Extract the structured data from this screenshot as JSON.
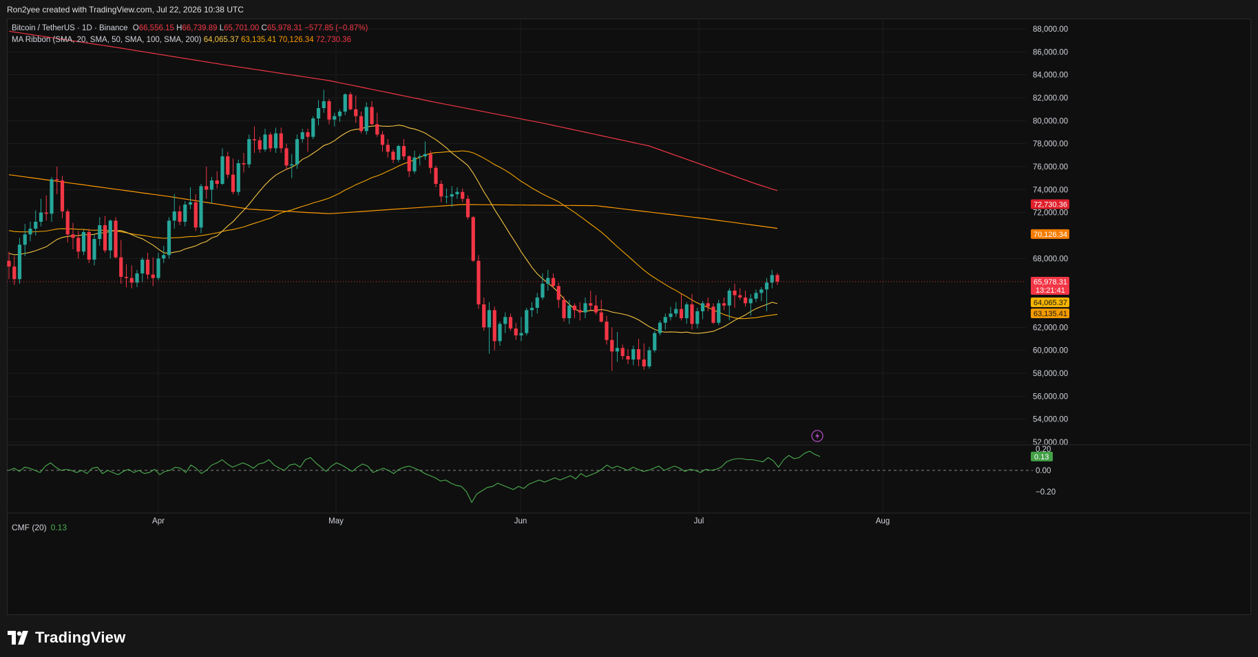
{
  "header": {
    "attribution": "Ron2yee created with TradingView.com, Jul 22, 2026 10:38 UTC"
  },
  "legend": {
    "symbol": "Bitcoin / TetherUS · 1D · Binance",
    "o_label": "O",
    "o_value": "66,556.15",
    "h_label": "H",
    "h_value": "66,739.89",
    "l_label": "L",
    "l_value": "65,701.00",
    "c_label": "C",
    "c_value": "65,978.31",
    "change": "−577.85 (−0.87%)",
    "ma_label": "MA Ribbon (SMA, 20, SMA, 50, SMA, 100, SMA, 200)",
    "ma_values": [
      "64,065.37",
      "63,135.41",
      "70,126.34",
      "72,730.36"
    ]
  },
  "cmf_legend": {
    "label": "CMF (20)",
    "value": "0.13"
  },
  "price_tags": {
    "ma200": "72,730.36",
    "ma100": "70,126.34",
    "last": "65,978.31",
    "countdown": "13:21:41",
    "ma20": "64,065.37",
    "ma50": "63,135.41",
    "cmf": "0.13"
  },
  "colors": {
    "up": "#26a69a",
    "down": "#f23645",
    "ma20": "#f5c542",
    "ma50": "#f7a600",
    "ma100": "#ff9800",
    "ma200": "#f23645",
    "cmf": "#4caf50",
    "background": "#0f0f0f"
  },
  "logo": {
    "text": "TradingView",
    "icon": "tradingview-logo-icon"
  },
  "chart_data": {
    "type": "candlestick",
    "title": "Bitcoin / TetherUS · 1D · Binance",
    "price_axis": {
      "ticks": [
        "88,000.00",
        "86,000.00",
        "84,000.00",
        "82,000.00",
        "80,000.00",
        "78,000.00",
        "76,000.00",
        "74,000.00",
        "72,000.00",
        "68,000.00",
        "62,000.00",
        "60,000.00",
        "58,000.00",
        "56,000.00",
        "54,000.00",
        "52,000.00"
      ],
      "ylim": [
        51500,
        89000
      ]
    },
    "time_axis": {
      "ticks": [
        "Apr",
        "May",
        "Jun",
        "Jul",
        "Aug"
      ]
    },
    "start_day_index": 0,
    "candles": [
      [
        67800,
        68600,
        66200,
        67300
      ],
      [
        67300,
        68200,
        65700,
        66200
      ],
      [
        66200,
        69800,
        65800,
        69200
      ],
      [
        69200,
        71000,
        68200,
        70100
      ],
      [
        70100,
        71200,
        69500,
        70600
      ],
      [
        70600,
        72200,
        70000,
        71200
      ],
      [
        71200,
        73200,
        70800,
        72000
      ],
      [
        72000,
        73500,
        71300,
        71900
      ],
      [
        71900,
        75100,
        71200,
        74900
      ],
      [
        74900,
        76000,
        73600,
        74800
      ],
      [
        74800,
        75200,
        71500,
        72100
      ],
      [
        72100,
        72300,
        69400,
        70100
      ],
      [
        70100,
        71100,
        68800,
        69800
      ],
      [
        69800,
        70400,
        68000,
        68600
      ],
      [
        68600,
        70500,
        68300,
        70300
      ],
      [
        70300,
        70600,
        67600,
        67900
      ],
      [
        67900,
        70100,
        67400,
        69700
      ],
      [
        69700,
        71600,
        69100,
        70900
      ],
      [
        70900,
        71700,
        68500,
        68700
      ],
      [
        68700,
        71400,
        68000,
        71300
      ],
      [
        71300,
        71600,
        68000,
        68100
      ],
      [
        68100,
        69600,
        65800,
        66400
      ],
      [
        66400,
        67500,
        65500,
        66300
      ],
      [
        66300,
        67400,
        65400,
        65900
      ],
      [
        65900,
        67000,
        65500,
        66700
      ],
      [
        66700,
        68100,
        65900,
        67900
      ],
      [
        67900,
        68500,
        66200,
        66600
      ],
      [
        66600,
        68100,
        65600,
        66300
      ],
      [
        66300,
        68500,
        66100,
        68000
      ],
      [
        68000,
        69100,
        67600,
        68300
      ],
      [
        68300,
        71600,
        68000,
        71300
      ],
      [
        71300,
        73600,
        70600,
        72100
      ],
      [
        72100,
        72600,
        70900,
        71200
      ],
      [
        71200,
        73000,
        70800,
        72700
      ],
      [
        72700,
        74200,
        72300,
        72900
      ],
      [
        72900,
        73600,
        70400,
        70700
      ],
      [
        70700,
        74500,
        70200,
        74300
      ],
      [
        74300,
        76000,
        73200,
        74000
      ],
      [
        74000,
        75100,
        72800,
        74800
      ],
      [
        74800,
        75600,
        74100,
        74500
      ],
      [
        74500,
        77600,
        74400,
        76900
      ],
      [
        76900,
        77300,
        75000,
        75300
      ],
      [
        75300,
        76700,
        73600,
        73800
      ],
      [
        73800,
        76600,
        73500,
        76300
      ],
      [
        76300,
        77200,
        75500,
        76200
      ],
      [
        76200,
        78800,
        75900,
        78400
      ],
      [
        78400,
        79500,
        77200,
        78300
      ],
      [
        78300,
        78600,
        77200,
        77500
      ],
      [
        77500,
        79300,
        77300,
        78800
      ],
      [
        78800,
        79000,
        77300,
        77600
      ],
      [
        77600,
        79400,
        77200,
        78900
      ],
      [
        78900,
        79400,
        77200,
        77600
      ],
      [
        77600,
        78000,
        75700,
        76100
      ],
      [
        76100,
        77100,
        75000,
        76200
      ],
      [
        76200,
        78800,
        75800,
        78400
      ],
      [
        78400,
        79300,
        78100,
        79000
      ],
      [
        79000,
        79300,
        77300,
        78600
      ],
      [
        78600,
        80400,
        78400,
        80200
      ],
      [
        80200,
        81800,
        79600,
        81100
      ],
      [
        81100,
        82700,
        80700,
        81700
      ],
      [
        81700,
        81900,
        79700,
        80100
      ],
      [
        80100,
        80700,
        79500,
        80400
      ],
      [
        80400,
        81000,
        79900,
        80800
      ],
      [
        80800,
        82400,
        80500,
        82300
      ],
      [
        82300,
        82500,
        80900,
        81000
      ],
      [
        81000,
        82200,
        79800,
        80400
      ],
      [
        80400,
        80800,
        78900,
        79100
      ],
      [
        79100,
        81600,
        78800,
        81200
      ],
      [
        81200,
        81700,
        79600,
        79700
      ],
      [
        79700,
        80700,
        78600,
        78800
      ],
      [
        78800,
        79100,
        77300,
        77900
      ],
      [
        77900,
        78400,
        76800,
        77300
      ],
      [
        77300,
        77500,
        76300,
        76600
      ],
      [
        76600,
        77900,
        76400,
        77800
      ],
      [
        77800,
        78400,
        76600,
        76900
      ],
      [
        76900,
        77000,
        75100,
        75600
      ],
      [
        75600,
        77400,
        75400,
        76800
      ],
      [
        76800,
        77100,
        76100,
        76900
      ],
      [
        76900,
        78200,
        76600,
        77100
      ],
      [
        77100,
        77400,
        75400,
        75900
      ],
      [
        75900,
        76100,
        74200,
        74500
      ],
      [
        74500,
        74800,
        72900,
        73400
      ],
      [
        73400,
        74100,
        72800,
        73400
      ],
      [
        73400,
        74300,
        72500,
        73600
      ],
      [
        73600,
        74200,
        73200,
        73800
      ],
      [
        73800,
        74100,
        72900,
        73200
      ],
      [
        73200,
        73500,
        71400,
        71600
      ],
      [
        71600,
        71700,
        67700,
        67800
      ],
      [
        67800,
        68300,
        63600,
        64000
      ],
      [
        64000,
        64600,
        61700,
        62000
      ],
      [
        62000,
        64200,
        59700,
        63500
      ],
      [
        63500,
        63800,
        60000,
        60800
      ],
      [
        60800,
        62500,
        60400,
        62300
      ],
      [
        62300,
        63300,
        61500,
        62900
      ],
      [
        62900,
        63200,
        61700,
        61900
      ],
      [
        61900,
        62400,
        60900,
        61300
      ],
      [
        61300,
        62900,
        60800,
        61500
      ],
      [
        61500,
        63700,
        61300,
        63500
      ],
      [
        63500,
        64200,
        62900,
        63700
      ],
      [
        63700,
        65000,
        63200,
        64600
      ],
      [
        64600,
        66700,
        64400,
        65800
      ],
      [
        65800,
        67000,
        65200,
        66300
      ],
      [
        66300,
        66700,
        65400,
        65600
      ],
      [
        65600,
        65900,
        63700,
        64400
      ],
      [
        64400,
        64700,
        62500,
        62800
      ],
      [
        62800,
        64400,
        62300,
        63900
      ],
      [
        63900,
        64100,
        62800,
        63500
      ],
      [
        63500,
        64200,
        62600,
        63300
      ],
      [
        63300,
        64600,
        62800,
        64100
      ],
      [
        64100,
        65200,
        63500,
        63900
      ],
      [
        63900,
        64800,
        63100,
        63300
      ],
      [
        63300,
        64400,
        62400,
        62500
      ],
      [
        62500,
        63000,
        60500,
        60900
      ],
      [
        60900,
        62000,
        58200,
        59900
      ],
      [
        59900,
        61600,
        59000,
        60200
      ],
      [
        60200,
        60500,
        59200,
        59500
      ],
      [
        59500,
        60100,
        58800,
        59200
      ],
      [
        59200,
        60400,
        58700,
        60100
      ],
      [
        60100,
        61000,
        58600,
        59200
      ],
      [
        59200,
        60600,
        58300,
        58600
      ],
      [
        58600,
        60300,
        58400,
        60000
      ],
      [
        60000,
        61700,
        59800,
        61500
      ],
      [
        61500,
        62600,
        61300,
        62400
      ],
      [
        62400,
        63200,
        61800,
        62900
      ],
      [
        62900,
        63800,
        62600,
        63200
      ],
      [
        63200,
        64200,
        62900,
        63600
      ],
      [
        63600,
        64900,
        62600,
        62800
      ],
      [
        62800,
        64200,
        62300,
        64000
      ],
      [
        64000,
        64900,
        61800,
        62300
      ],
      [
        62300,
        63700,
        61900,
        63400
      ],
      [
        63400,
        64300,
        62700,
        64100
      ],
      [
        64100,
        64600,
        63400,
        63800
      ],
      [
        63800,
        64100,
        62300,
        62400
      ],
      [
        62400,
        64400,
        62200,
        64100
      ],
      [
        64100,
        64600,
        63500,
        63900
      ],
      [
        63900,
        65400,
        62600,
        65200
      ],
      [
        65200,
        65800,
        63700,
        64800
      ],
      [
        64800,
        65400,
        64400,
        64600
      ],
      [
        64600,
        65200,
        63800,
        64100
      ],
      [
        64100,
        64900,
        63000,
        64500
      ],
      [
        64500,
        65300,
        64200,
        65000
      ],
      [
        65000,
        65500,
        64300,
        65300
      ],
      [
        65300,
        66300,
        63400,
        65900
      ],
      [
        65900,
        67000,
        65400,
        66556
      ],
      [
        66556,
        66740,
        65701,
        65978
      ]
    ],
    "cmf": {
      "label": "CMF (20)",
      "ticks": [
        "0.20",
        "0.00",
        "−0.20"
      ],
      "ylim": [
        -0.33,
        0.22
      ],
      "values": [
        0.0,
        0.02,
        -0.01,
        0.03,
        0.02,
        0.0,
        -0.02,
        0.04,
        0.07,
        0.03,
        0.0,
        0.01,
        0.0,
        -0.02,
        0.0,
        -0.03,
        0.02,
        0.03,
        -0.03,
        0.0,
        -0.02,
        -0.04,
        -0.01,
        0.01,
        -0.02,
        0.0,
        -0.03,
        -0.02,
        0.01,
        -0.04,
        -0.01,
        0.0,
        0.03,
        0.02,
        -0.02,
        0.05,
        0.02,
        -0.03,
        0.0,
        0.05,
        0.07,
        0.1,
        0.06,
        0.03,
        0.05,
        0.07,
        0.05,
        0.02,
        0.06,
        0.07,
        0.1,
        0.05,
        0.02,
        0.0,
        0.05,
        0.06,
        0.03,
        0.1,
        0.12,
        0.07,
        0.03,
        -0.01,
        0.04,
        0.07,
        0.05,
        0.02,
        -0.01,
        0.03,
        0.06,
        0.04,
        -0.02,
        0.0,
        0.02,
        0.0,
        -0.03,
        0.01,
        0.03,
        0.04,
        0.02,
        0.0,
        -0.03,
        -0.05,
        -0.07,
        -0.1,
        -0.09,
        -0.12,
        -0.14,
        -0.15,
        -0.2,
        -0.3,
        -0.22,
        -0.19,
        -0.16,
        -0.15,
        -0.12,
        -0.14,
        -0.16,
        -0.18,
        -0.15,
        -0.17,
        -0.13,
        -0.11,
        -0.09,
        -0.11,
        -0.09,
        -0.07,
        -0.09,
        -0.07,
        -0.05,
        -0.08,
        -0.03,
        -0.06,
        -0.04,
        -0.02,
        0.01,
        0.05,
        0.02,
        0.04,
        0.02,
        0.0,
        0.03,
        0.01,
        -0.01,
        0.0,
        0.02,
        0.04,
        0.0,
        0.02,
        0.04,
        0.02,
        -0.01,
        0.01,
        0.0,
        -0.02,
        0.01,
        0.0,
        0.01,
        0.03,
        0.08,
        0.1,
        0.11,
        0.11,
        0.1,
        0.1,
        0.09,
        0.08,
        0.12,
        0.09,
        0.03,
        0.1,
        0.14,
        0.11,
        0.12,
        0.16,
        0.18,
        0.15,
        0.13
      ]
    }
  }
}
